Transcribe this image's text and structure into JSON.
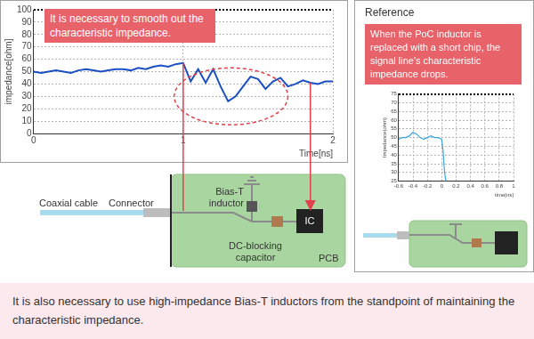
{
  "chart_data": [
    {
      "type": "line",
      "x": [
        0,
        0.05,
        0.1,
        0.15,
        0.2,
        0.25,
        0.3,
        0.35,
        0.4,
        0.45,
        0.5,
        0.55,
        0.6,
        0.65,
        0.7,
        0.75,
        0.8,
        0.85,
        0.9,
        0.95,
        1,
        1.05,
        1.1,
        1.15,
        1.2,
        1.25,
        1.3,
        1.35,
        1.4,
        1.45,
        1.5,
        1.55,
        1.6,
        1.65,
        1.7,
        1.75,
        1.8,
        1.85,
        1.9,
        1.95,
        2
      ],
      "values": [
        50,
        49,
        50,
        51,
        50,
        49,
        51,
        52,
        51,
        50,
        51,
        52,
        52,
        51,
        53,
        52,
        54,
        55,
        54,
        56,
        57,
        42,
        52,
        41,
        52,
        38,
        26,
        30,
        38,
        46,
        44,
        36,
        42,
        45,
        38,
        40,
        43,
        41,
        40,
        42,
        42
      ],
      "color": "#1a4fc4",
      "xlim": [
        0,
        2
      ],
      "xticks": [
        0,
        1,
        2
      ],
      "ylim": [
        0,
        100
      ],
      "yticks": [
        0,
        10,
        20,
        30,
        40,
        50,
        60,
        70,
        80,
        90,
        100
      ],
      "x_label": "Time[ns]",
      "y_label": "impedance[ohm]",
      "grid": true,
      "annotations": [
        "It is necessary to smooth out the characteristic impedance."
      ]
    },
    {
      "type": "line",
      "title": "Reference",
      "x": [
        -0.6,
        -0.55,
        -0.5,
        -0.45,
        -0.4,
        -0.35,
        -0.3,
        -0.25,
        -0.2,
        -0.15,
        -0.1,
        -0.05,
        0,
        0.02,
        0.04,
        0.06
      ],
      "values": [
        49,
        50,
        50,
        51,
        53,
        52,
        50,
        49,
        50,
        51,
        50,
        50,
        49,
        42,
        30,
        25
      ],
      "color": "#3aa6dc",
      "xlim": [
        -0.6,
        1
      ],
      "xticks": [
        -0.6,
        -0.4,
        -0.2,
        0,
        0.2,
        0.4,
        0.6,
        0.8,
        1
      ],
      "ylim": [
        25,
        75
      ],
      "yticks": [
        25,
        30,
        35,
        40,
        45,
        50,
        55,
        60,
        65,
        70,
        75
      ],
      "x_label": "time[ns]",
      "y_label": "Impedance(ohm)",
      "grid": true,
      "annotations": [
        "When the PoC inductor is replaced with a short chip, the signal line's characteristic impedance drops."
      ]
    }
  ],
  "diagram": {
    "labels": {
      "cable": "Coaxial cable",
      "connector": "Connector",
      "inductor": "Bias-T inductor",
      "capacitor": "DC-blocking capacitor",
      "ic": "IC",
      "board": "PCB"
    }
  },
  "caption": "It is also necessary to use high-impedance Bias-T inductors from the standpoint of maintaining the characteristic impedance."
}
